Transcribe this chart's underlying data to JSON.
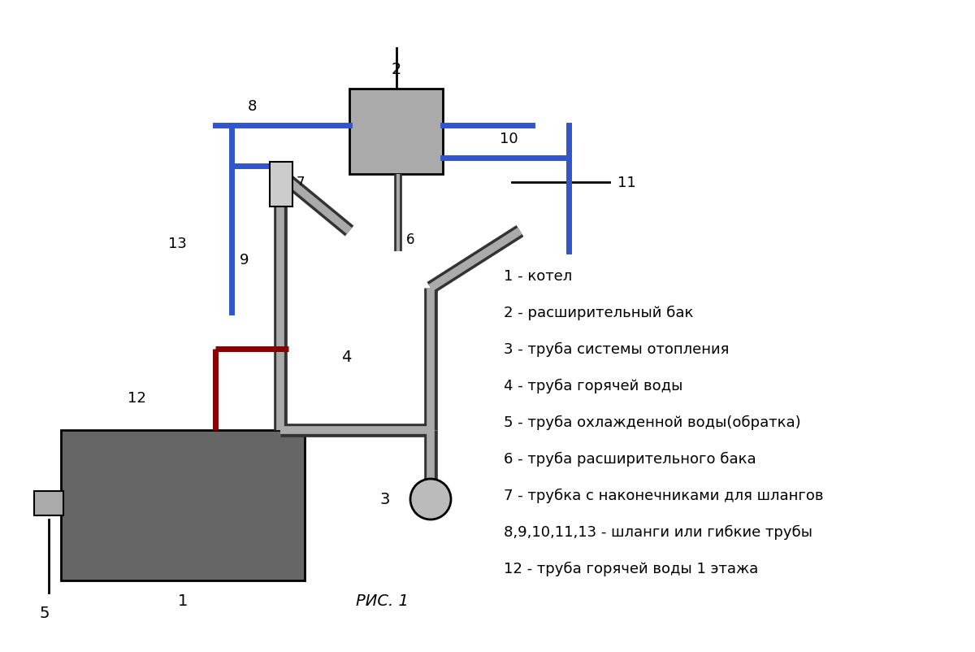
{
  "bg_color": "#ffffff",
  "pipe_gray_fill": "#aaaaaa",
  "pipe_gray_edge": "#333333",
  "blue_color": "#3355cc",
  "red_color": "#880000",
  "boiler_color": "#666666",
  "tank_color": "#aaaaaa",
  "legend": [
    "1 - котел",
    "2 - расширительный бак",
    "3 - труба системы отопления",
    "4 - труба горячей воды",
    "5 - труба охлажденной воды(обратка)",
    "6 - труба расширительного бака",
    "7 - трубка с наконечниками для шлангов",
    "8,9,10,11,13 - шланги или гибкие трубы",
    "12 - труба горячей воды 1 этажа"
  ],
  "caption": "РИС. 1"
}
